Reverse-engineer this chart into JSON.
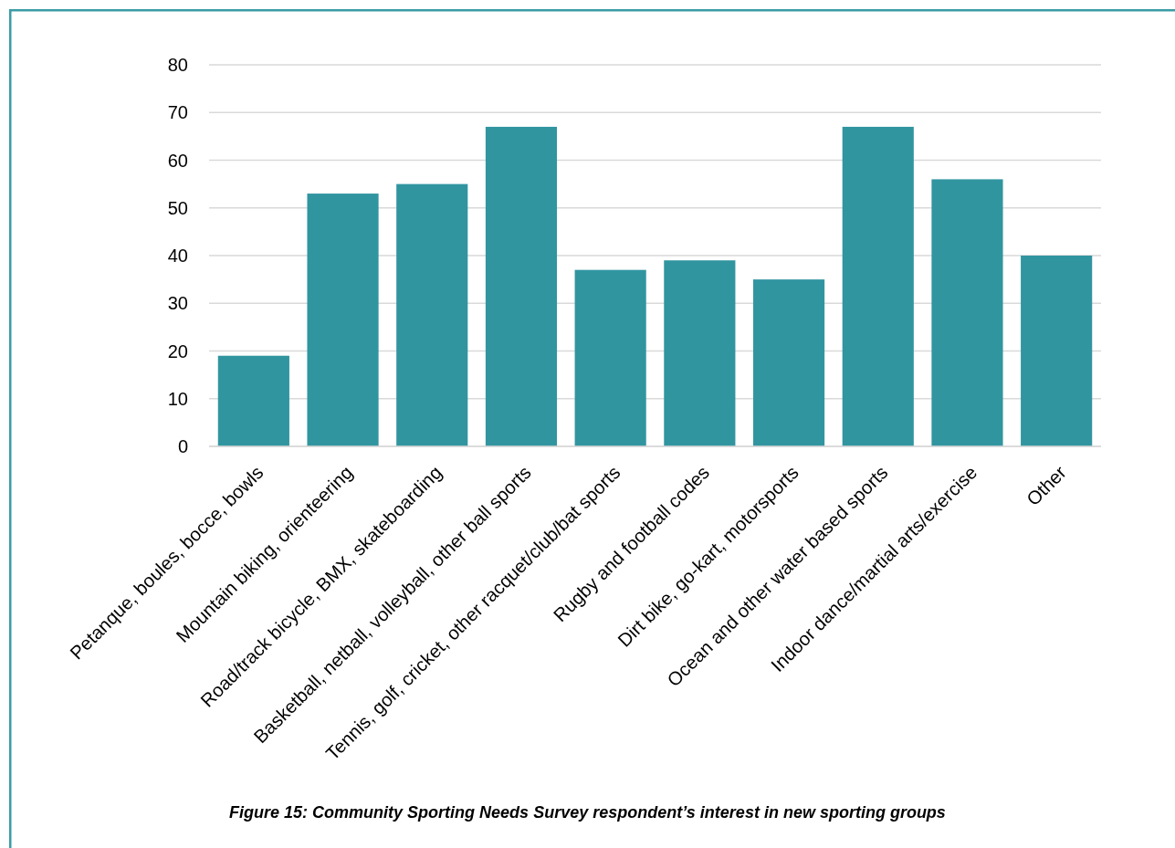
{
  "chart_data": {
    "type": "bar",
    "categories": [
      "Petanque, boules, bocce, bowls",
      "Mountain biking, orienteering",
      "Road/track bicycle, BMX, skateboarding",
      "Basketball, netball, volleyball, other ball sports",
      "Tennis, golf, cricket, other racquet/club/bat sports",
      "Rugby and football codes",
      "Dirt bike, go-kart, motorsports",
      "Ocean and other water based sports",
      "Indoor dance/martial arts/exercise",
      "Other"
    ],
    "values": [
      19,
      53,
      55,
      67,
      37,
      39,
      35,
      67,
      56,
      40
    ],
    "color": "#3195a0",
    "ylim": [
      0,
      80
    ],
    "yticks": [
      0,
      10,
      20,
      30,
      40,
      50,
      60,
      70,
      80
    ],
    "grid": "y",
    "annotations": [
      "Figure 15: Community Sporting Needs Survey respondent’s interest in new sporting groups"
    ]
  }
}
